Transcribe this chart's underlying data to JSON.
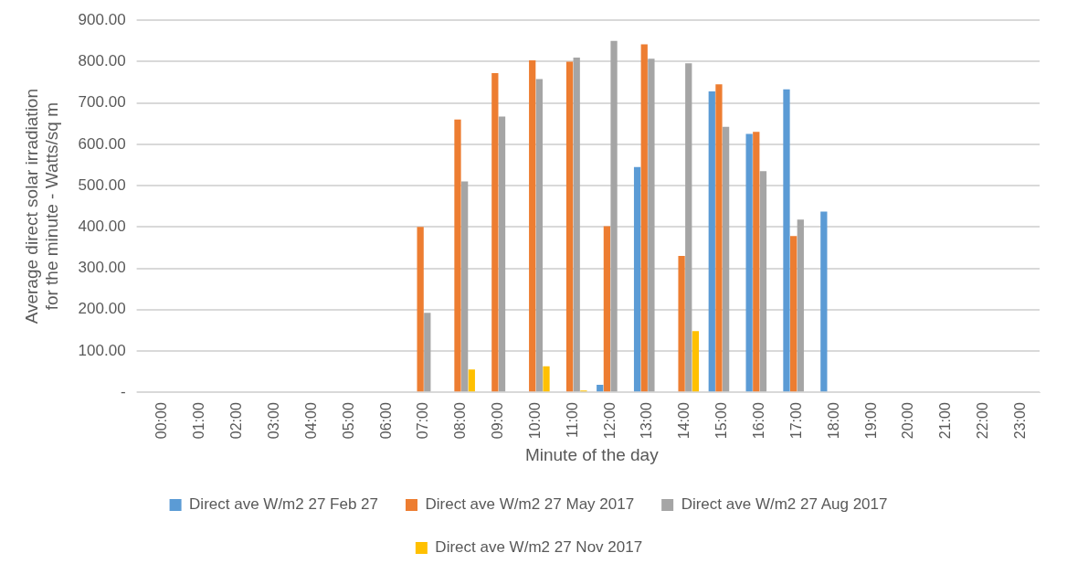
{
  "chart_data": {
    "type": "bar",
    "xlabel": "Minute of the day",
    "ylabel": "Average direct solar irradiation for the minute - Watts/sq m",
    "categories": [
      "00:00",
      "01:00",
      "02:00",
      "03:00",
      "04:00",
      "05:00",
      "06:00",
      "07:00",
      "08:00",
      "09:00",
      "10:00",
      "11:00",
      "12:00",
      "13:00",
      "14:00",
      "15:00",
      "16:00",
      "17:00",
      "18:00",
      "19:00",
      "20:00",
      "21:00",
      "22:00",
      "23:00"
    ],
    "series": [
      {
        "name": "Direct ave W/m2 27 Feb 27",
        "color": "#5b9bd5",
        "values": [
          0,
          0,
          0,
          0,
          0,
          0,
          0,
          0,
          0,
          0,
          0,
          0,
          18,
          545,
          0,
          728,
          625,
          733,
          437,
          0,
          0,
          0,
          0,
          0
        ]
      },
      {
        "name": "Direct ave W/m2 27 May 2017",
        "color": "#ed7d31",
        "values": [
          0,
          0,
          0,
          0,
          0,
          0,
          0,
          400,
          660,
          772,
          803,
          800,
          402,
          842,
          330,
          745,
          630,
          378,
          0,
          0,
          0,
          0,
          0,
          0
        ]
      },
      {
        "name": "Direct ave W/m2 27 Aug 2017",
        "color": "#a5a5a5",
        "values": [
          0,
          0,
          0,
          0,
          0,
          0,
          0,
          192,
          510,
          667,
          758,
          810,
          850,
          807,
          796,
          642,
          535,
          418,
          0,
          0,
          0,
          0,
          0,
          0
        ]
      },
      {
        "name": "Direct ave W/m2 27 Nov 2017",
        "color": "#ffc000",
        "values": [
          0,
          0,
          0,
          0,
          0,
          0,
          0,
          0,
          55,
          0,
          63,
          4,
          0,
          0,
          148,
          0,
          0,
          0,
          0,
          0,
          0,
          0,
          0,
          0
        ]
      }
    ],
    "ylim": [
      0,
      900
    ],
    "yticks": [
      {
        "value": 0,
        "label": "-"
      },
      {
        "value": 100,
        "label": "100.00"
      },
      {
        "value": 200,
        "label": "200.00"
      },
      {
        "value": 300,
        "label": "300.00"
      },
      {
        "value": 400,
        "label": "400.00"
      },
      {
        "value": 500,
        "label": "500.00"
      },
      {
        "value": 600,
        "label": "600.00"
      },
      {
        "value": 700,
        "label": "700.00"
      },
      {
        "value": 800,
        "label": "800.00"
      },
      {
        "value": 900,
        "label": "900.00"
      }
    ],
    "grid": "y",
    "legend": "bottom"
  }
}
